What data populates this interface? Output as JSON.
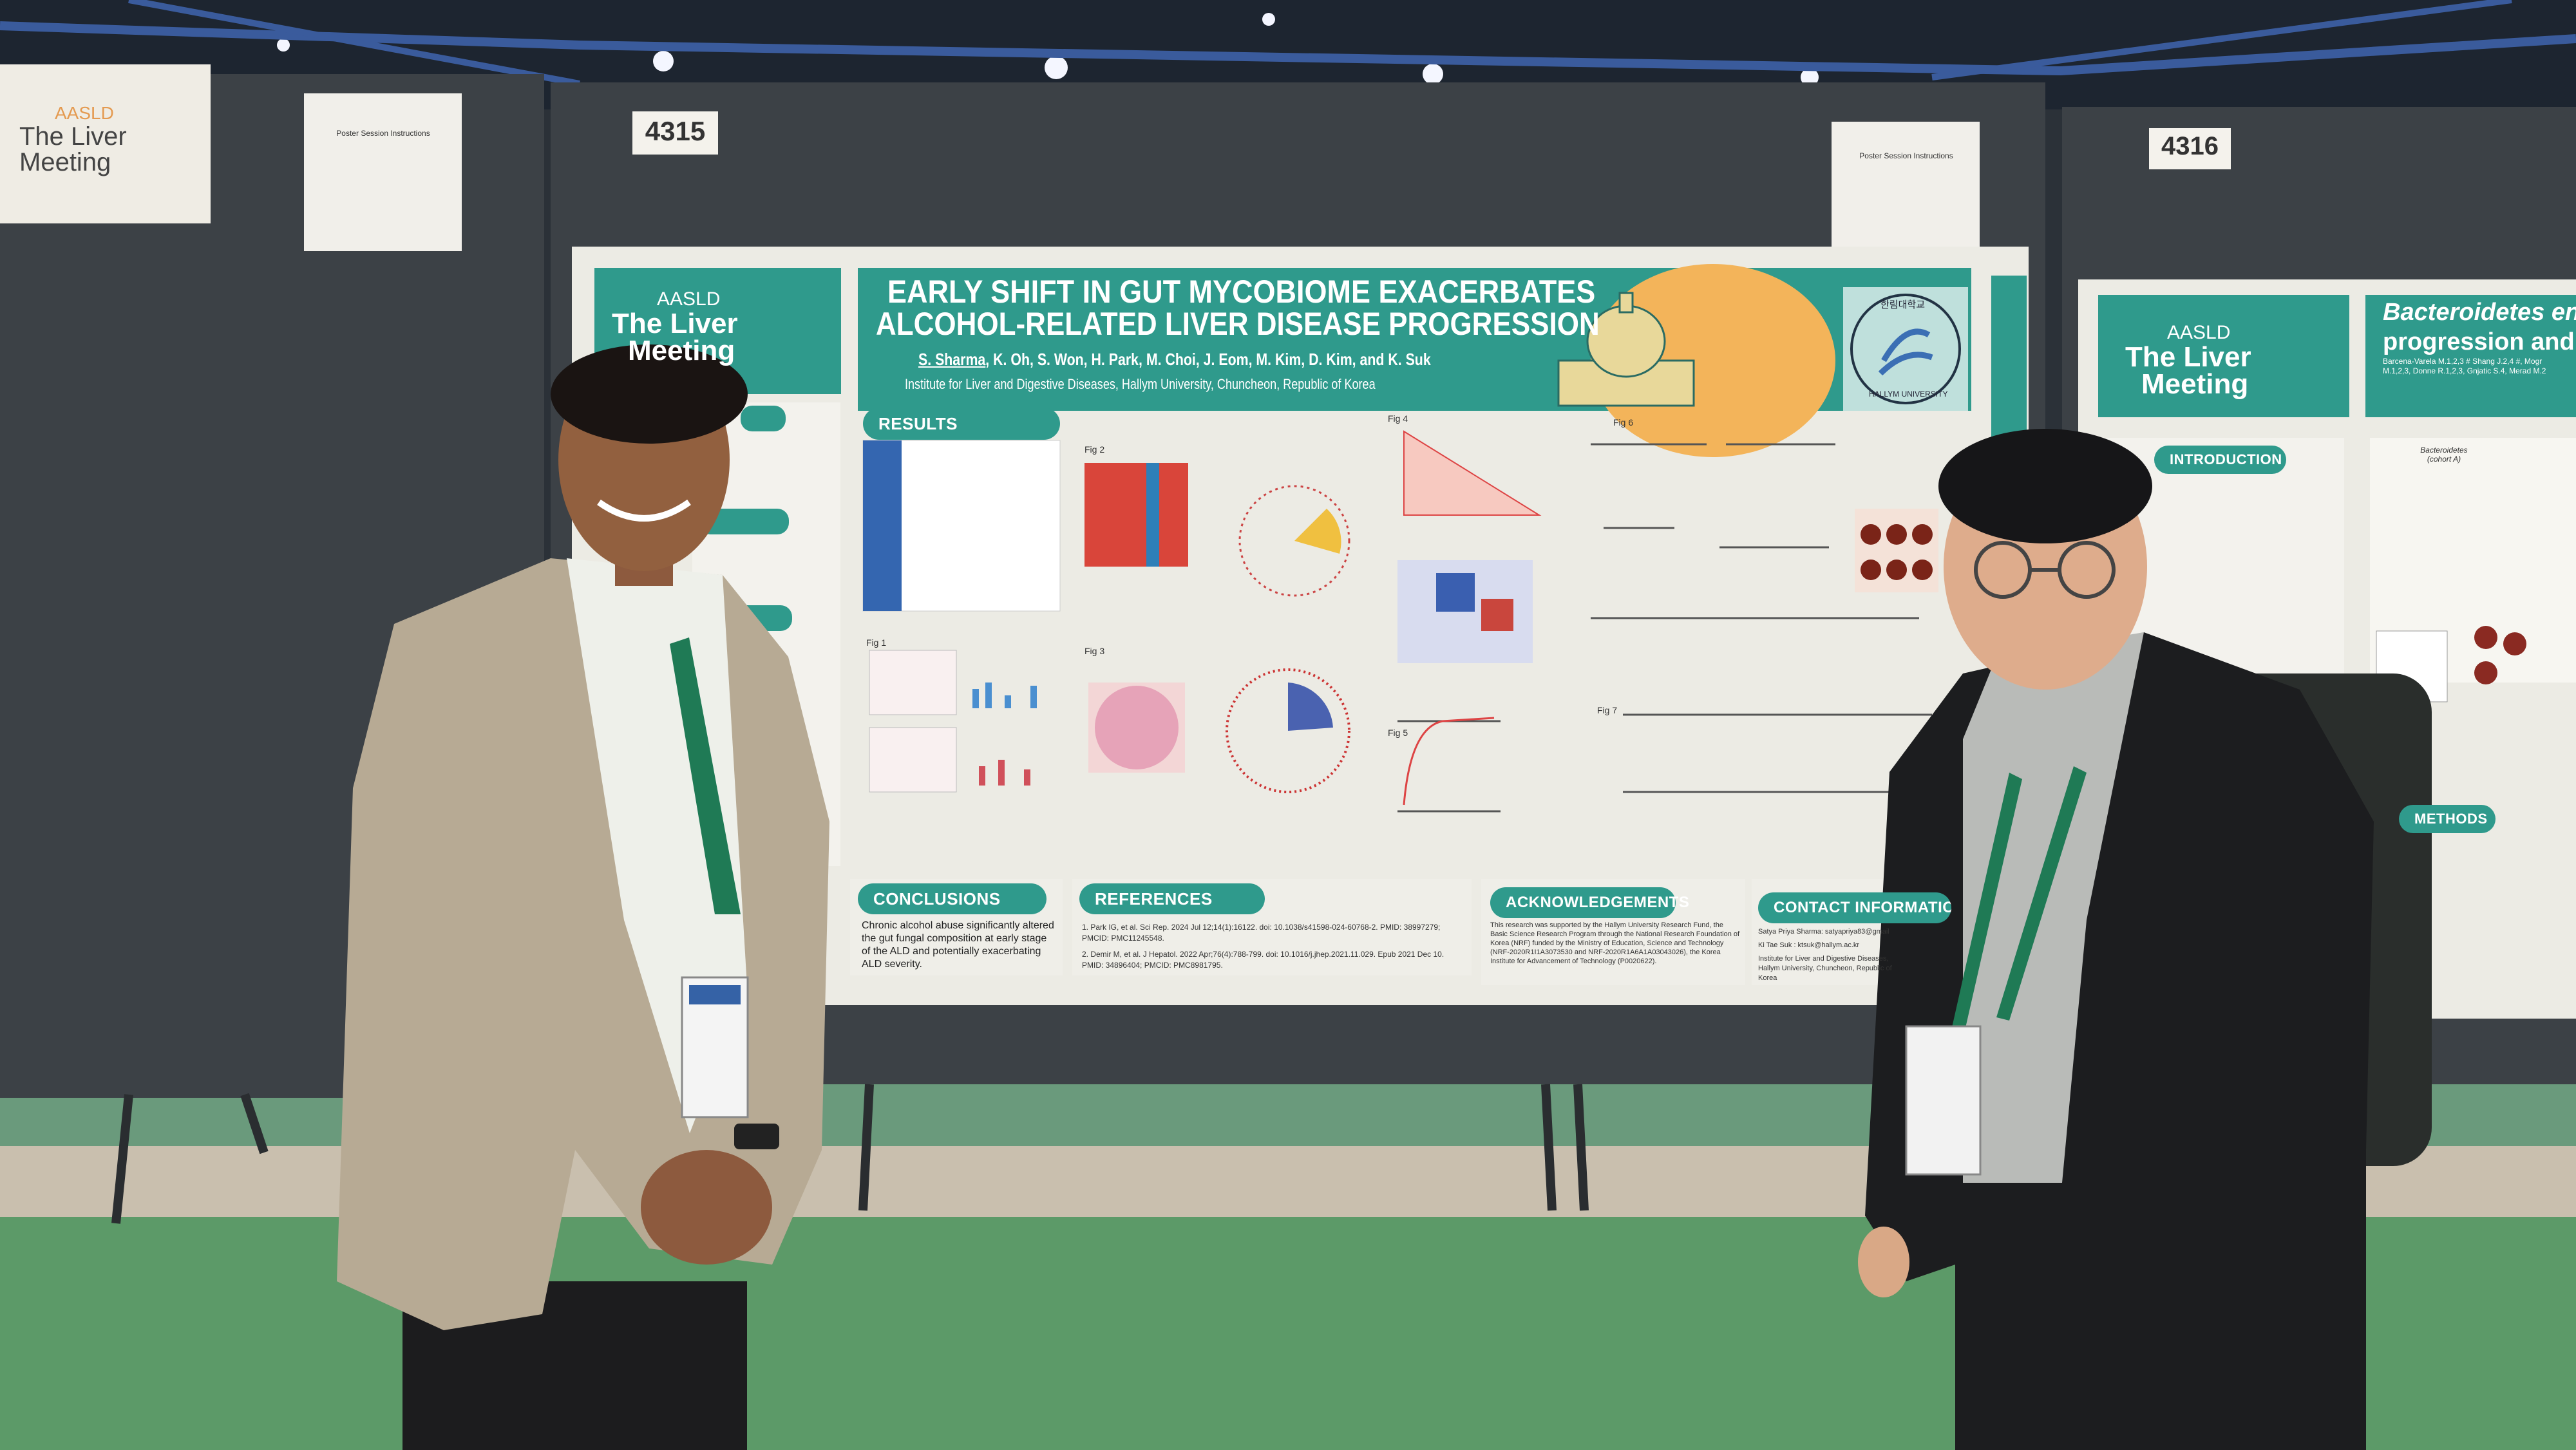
{
  "booth_numbers": {
    "center": "4315",
    "right": "4316"
  },
  "left_sign": {
    "org": "AASLD",
    "line1": "The Liver",
    "line2": "Meeting"
  },
  "notice_sheets": {
    "title": "Poster Session Instructions"
  },
  "main_poster": {
    "logo": {
      "org": "AASLD",
      "line1": "The Liver",
      "line2": "Meeting"
    },
    "title_line1": "EARLY SHIFT IN GUT MYCOBIOME EXACERBATES",
    "title_line2": "ALCOHOL-RELATED LIVER DISEASE PROGRESSION",
    "presenting_author": "S. Sharma",
    "other_authors": ", K. Oh, S. Won, H. Park, M. Choi, J. Eom, M. Kim, D. Kim, and K. Suk",
    "affiliation": "Institute for Liver and Digestive Diseases, Hallym University, Chuncheon, Republic of Korea",
    "university_logo": {
      "korean": "한림대학교",
      "english": "HALLYM UNIVERSITY"
    },
    "results": {
      "heading": "RESULTS",
      "figure_labels": [
        "Fig 1",
        "Fig 2",
        "Fig 3",
        "Fig 4",
        "Fig 5",
        "Fig 6",
        "Fig 7"
      ]
    },
    "conclusions": {
      "heading": "CONCLUSIONS",
      "text": "Chronic alcohol abuse significantly altered the gut fungal composition at early stage of the ALD and potentially exacerbating ALD severity."
    },
    "references": {
      "heading": "REFERENCES",
      "items": [
        "1. Park IG, et al. Sci Rep. 2024 Jul 12;14(1):16122. doi: 10.1038/s41598-024-60768-2. PMID: 38997279; PMCID: PMC11245548.",
        "2. Demir M, et al. J Hepatol. 2022 Apr;76(4):788-799. doi: 10.1016/j.jhep.2021.11.029. Epub 2021 Dec 10. PMID: 34896404; PMCID: PMC8981795."
      ]
    },
    "acknowledgements": {
      "heading": "ACKNOWLEDGEMENTS",
      "text": "This research was supported by the Hallym University Research Fund, the Basic Science Research Program through the National Research Foundation of Korea (NRF) funded by the Ministry of Education, Science and Technology (NRF-2020R1I1A3073530 and NRF-2020R1A6A1A03043026), the Korea Institute for Advancement of Technology (P0020622)."
    },
    "contact": {
      "heading": "CONTACT INFORMATION",
      "lines": [
        "Satya Priya Sharma: satyapriya83@gmail",
        "Ki Tae Suk : ktsuk@hallym.ac.kr",
        "Institute for Liver and Digestive Diseases, Hallym University, Chuncheon, Republic of Korea"
      ]
    }
  },
  "right_poster": {
    "logo": {
      "org": "AASLD",
      "line1": "The Liver",
      "line2": "Meeting"
    },
    "title_line1": "Bacteroidetes en",
    "title_line2": "progression and",
    "authors_line1": "Barcena-Varela M.1,2,3 # Shang J.2,4 #, Mogr",
    "authors_line2": "M.1,2,3, Donne R.1,2,3, Gnjatic S.4, Merad M.2",
    "introduction_heading": "INTRODUCTION",
    "methods_heading": "METHODS",
    "figure_label": "Bacteroidetes (cohort A)"
  },
  "colors": {
    "poster_teal": "#2f9a8c",
    "carpet_green": "#5c9a68",
    "board_gray": "#3c4146"
  }
}
